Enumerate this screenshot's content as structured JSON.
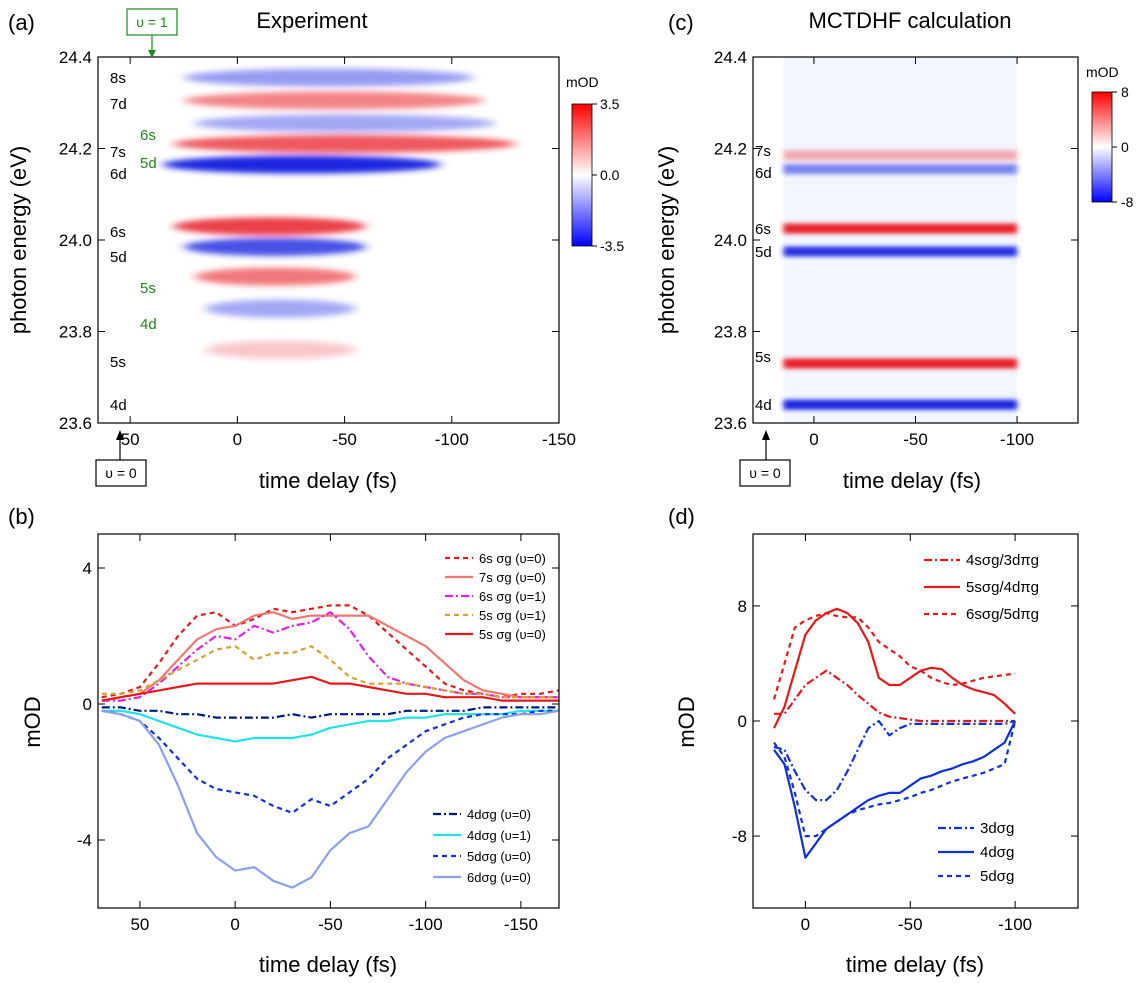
{
  "figure": {
    "panels": {
      "a": {
        "letter": "(a)",
        "title": "Experiment",
        "xlabel": "time delay (fs)",
        "ylabel": "photon energy (eV)"
      },
      "b": {
        "letter": "(b)",
        "xlabel": "time delay (fs)",
        "ylabel": "mOD"
      },
      "c": {
        "letter": "(c)",
        "title": "MCTDHF calculation",
        "xlabel": "time delay (fs)",
        "ylabel": "photon energy (eV)"
      },
      "d": {
        "letter": "(d)",
        "xlabel": "time delay (fs)",
        "ylabel": "mOD"
      }
    },
    "markers": {
      "a_v1": "υ = 1",
      "a_v0": "υ = 0",
      "c_v0": "υ = 0"
    },
    "colorbars": {
      "a": {
        "unit": "mOD",
        "ticks": [
          "3.5",
          "0.0",
          "-3.5"
        ]
      },
      "c": {
        "unit": "mOD",
        "ticks": [
          "8",
          "0",
          "-8"
        ]
      }
    },
    "state_labels": {
      "a_black": [
        "8s",
        "7d",
        "7s",
        "6d",
        "6s",
        "5d",
        "5s",
        "4d"
      ],
      "a_green": [
        "6s",
        "5d",
        "5s",
        "4d"
      ],
      "c_black": [
        "7s",
        "6d",
        "6s",
        "5d",
        "5s",
        "4d"
      ]
    },
    "colors": {
      "red": "#e31a1c",
      "blue": "#1030d8",
      "salmon": "#f07870",
      "magenta": "#e020e0",
      "orange": "#d8a030",
      "navy": "#001a80",
      "cyan": "#20e0e8",
      "lightblue": "#8ca0e8",
      "green": "#1a8a1a"
    }
  },
  "chart_data": [
    {
      "panel": "a",
      "type": "heatmap",
      "title": "Experiment",
      "xlabel": "time delay (fs)",
      "ylabel": "photon energy (eV)",
      "xlim": [
        65,
        -150
      ],
      "ylim": [
        23.6,
        24.4
      ],
      "x_ticks": [
        50,
        0,
        -50,
        -100,
        -150
      ],
      "y_ticks": [
        23.6,
        23.8,
        24.0,
        24.2,
        24.4
      ],
      "colorbar": {
        "label": "mOD",
        "range": [
          -3.5,
          3.5
        ],
        "ticks": [
          3.5,
          0.0,
          -3.5
        ]
      },
      "features": [
        {
          "energy": 24.355,
          "sign": -1,
          "amp": 0.45,
          "t_start": 25,
          "t_end": -110
        },
        {
          "energy": 24.305,
          "sign": 1,
          "amp": 0.55,
          "t_start": 25,
          "t_end": -115
        },
        {
          "energy": 24.255,
          "sign": -1,
          "amp": 0.4,
          "t_start": 20,
          "t_end": -120
        },
        {
          "energy": 24.21,
          "sign": 1,
          "amp": 0.75,
          "t_start": 30,
          "t_end": -130
        },
        {
          "energy": 24.165,
          "sign": -1,
          "amp": 1.0,
          "t_start": 35,
          "t_end": -95
        },
        {
          "energy": 24.03,
          "sign": 1,
          "amp": 0.85,
          "t_start": 30,
          "t_end": -60
        },
        {
          "energy": 23.985,
          "sign": -1,
          "amp": 0.8,
          "t_start": 25,
          "t_end": -60
        },
        {
          "energy": 23.92,
          "sign": 1,
          "amp": 0.6,
          "t_start": 20,
          "t_end": -55
        },
        {
          "energy": 23.85,
          "sign": -1,
          "amp": 0.4,
          "t_start": 15,
          "t_end": -55
        },
        {
          "energy": 23.76,
          "sign": 1,
          "amp": 0.25,
          "t_start": 15,
          "t_end": -55
        }
      ]
    },
    {
      "panel": "b",
      "type": "line",
      "xlabel": "time delay (fs)",
      "ylabel": "mOD",
      "xlim": [
        72,
        -170
      ],
      "ylim": [
        -6,
        5
      ],
      "x_ticks": [
        50,
        0,
        -50,
        -100,
        -150
      ],
      "y_ticks": [
        -4,
        0,
        4
      ],
      "x": [
        70,
        60,
        50,
        40,
        30,
        20,
        10,
        0,
        -10,
        -20,
        -30,
        -40,
        -50,
        -60,
        -70,
        -80,
        -90,
        -100,
        -110,
        -120,
        -130,
        -140,
        -150,
        -160,
        -170
      ],
      "series": [
        {
          "name": "6s σg (υ=0)",
          "color": "#e31a1c",
          "dash": "5,4",
          "values": [
            0.2,
            0.3,
            0.5,
            1.2,
            2.0,
            2.6,
            2.7,
            2.3,
            2.5,
            2.8,
            2.7,
            2.8,
            2.9,
            2.9,
            2.6,
            2.1,
            1.6,
            1.1,
            0.6,
            0.4,
            0.3,
            0.2,
            0.3,
            0.3,
            0.4
          ]
        },
        {
          "name": "7s σg (υ=0)",
          "color": "#f07870",
          "dash": "",
          "values": [
            0.1,
            0.2,
            0.3,
            0.7,
            1.3,
            1.9,
            2.2,
            2.3,
            2.6,
            2.7,
            2.5,
            2.6,
            2.6,
            2.6,
            2.6,
            2.3,
            2.0,
            1.7,
            1.2,
            0.7,
            0.4,
            0.3,
            0.2,
            0.2,
            0.2
          ]
        },
        {
          "name": "6s σg (υ=1)",
          "color": "#e020e0",
          "dash": "8,3,2,3",
          "values": [
            0.1,
            0.1,
            0.2,
            0.6,
            1.1,
            1.6,
            2.0,
            1.9,
            2.3,
            2.1,
            2.3,
            2.4,
            2.7,
            2.2,
            1.4,
            0.8,
            0.6,
            0.5,
            0.4,
            0.3,
            0.3,
            0.2,
            0.2,
            0.2,
            0.2
          ]
        },
        {
          "name": "5s σg (υ=1)",
          "color": "#d8a030",
          "dash": "5,4",
          "values": [
            0.3,
            0.3,
            0.4,
            0.7,
            1.0,
            1.3,
            1.6,
            1.7,
            1.3,
            1.5,
            1.5,
            1.7,
            1.3,
            0.8,
            0.6,
            0.6,
            0.6,
            0.5,
            0.4,
            0.3,
            0.3,
            0.2,
            0.2,
            0.2,
            0.2
          ]
        },
        {
          "name": "5s σg (υ=0)",
          "color": "#e31a1c",
          "dash": "",
          "values": [
            0.1,
            0.2,
            0.3,
            0.4,
            0.5,
            0.6,
            0.6,
            0.6,
            0.6,
            0.6,
            0.7,
            0.8,
            0.6,
            0.6,
            0.5,
            0.4,
            0.3,
            0.3,
            0.2,
            0.2,
            0.2,
            0.1,
            0.1,
            0.1,
            0.1
          ]
        },
        {
          "name": "4dσg (υ=0)",
          "color": "#001a80",
          "dash": "8,3,2,3",
          "values": [
            -0.1,
            -0.1,
            -0.2,
            -0.2,
            -0.3,
            -0.3,
            -0.4,
            -0.4,
            -0.4,
            -0.4,
            -0.3,
            -0.4,
            -0.3,
            -0.3,
            -0.3,
            -0.3,
            -0.2,
            -0.2,
            -0.2,
            -0.2,
            -0.1,
            -0.1,
            -0.1,
            -0.1,
            -0.1
          ]
        },
        {
          "name": "4dσg (υ=1)",
          "color": "#20e0e8",
          "dash": "",
          "values": [
            -0.2,
            -0.2,
            -0.3,
            -0.5,
            -0.7,
            -0.9,
            -1.0,
            -1.1,
            -1.0,
            -1.0,
            -1.0,
            -0.9,
            -0.7,
            -0.6,
            -0.5,
            -0.5,
            -0.4,
            -0.4,
            -0.3,
            -0.3,
            -0.3,
            -0.3,
            -0.2,
            -0.2,
            -0.2
          ]
        },
        {
          "name": "5dσg (υ=0)",
          "color": "#1030d8",
          "dash": "5,4",
          "values": [
            -0.2,
            -0.3,
            -0.5,
            -1.0,
            -1.6,
            -2.2,
            -2.5,
            -2.6,
            -2.7,
            -3.0,
            -3.2,
            -2.8,
            -3.0,
            -2.6,
            -2.2,
            -1.6,
            -1.2,
            -0.8,
            -0.6,
            -0.4,
            -0.3,
            -0.3,
            -0.3,
            -0.2,
            -0.2
          ]
        },
        {
          "name": "6dσg (υ=0)",
          "color": "#8ca0e8",
          "dash": "",
          "values": [
            -0.2,
            -0.3,
            -0.5,
            -1.2,
            -2.4,
            -3.8,
            -4.5,
            -4.9,
            -4.8,
            -5.2,
            -5.4,
            -5.1,
            -4.3,
            -3.8,
            -3.6,
            -2.8,
            -2.0,
            -1.4,
            -1.0,
            -0.8,
            -0.6,
            -0.4,
            -0.3,
            -0.3,
            -0.2
          ]
        }
      ]
    },
    {
      "panel": "c",
      "type": "heatmap",
      "title": "MCTDHF calculation",
      "xlabel": "time delay (fs)",
      "ylabel": "photon energy (eV)",
      "xlim": [
        30,
        -130
      ],
      "ylim": [
        23.6,
        24.4
      ],
      "data_xrange": [
        15,
        -100
      ],
      "x_ticks": [
        0,
        -50,
        -100
      ],
      "y_ticks": [
        23.6,
        23.8,
        24.0,
        24.2,
        24.4
      ],
      "colorbar": {
        "label": "mOD",
        "range": [
          -8,
          8
        ],
        "ticks": [
          8,
          0,
          -8
        ]
      },
      "features": [
        {
          "energy": 24.185,
          "sign": 1,
          "amp": 0.35
        },
        {
          "energy": 24.155,
          "sign": -1,
          "amp": 0.55
        },
        {
          "energy": 24.025,
          "sign": 1,
          "amp": 1.0
        },
        {
          "energy": 23.975,
          "sign": -1,
          "amp": 0.95
        },
        {
          "energy": 23.73,
          "sign": 1,
          "amp": 1.0
        },
        {
          "energy": 23.64,
          "sign": -1,
          "amp": 1.0
        }
      ]
    },
    {
      "panel": "d",
      "type": "line",
      "xlabel": "time delay (fs)",
      "ylabel": "mOD",
      "xlim": [
        25,
        -130
      ],
      "ylim": [
        -13,
        13
      ],
      "x_ticks": [
        0,
        -50,
        -100
      ],
      "y_ticks": [
        -8,
        0,
        8
      ],
      "x": [
        15,
        10,
        5,
        0,
        -5,
        -10,
        -15,
        -20,
        -25,
        -30,
        -35,
        -40,
        -45,
        -50,
        -55,
        -60,
        -65,
        -70,
        -75,
        -80,
        -85,
        -90,
        -95,
        -100
      ],
      "series": [
        {
          "name": "4sσg/3dπg",
          "color": "#e31a1c",
          "dash": "8,3,2,3",
          "values": [
            0.5,
            0.5,
            1.5,
            2.5,
            3.0,
            3.5,
            3.0,
            2.5,
            1.8,
            1.2,
            0.6,
            0.3,
            0.2,
            0.1,
            0.0,
            0.0,
            0.0,
            0.0,
            0.0,
            0.0,
            0.0,
            0.0,
            0.0,
            0.0
          ]
        },
        {
          "name": "5sσg/4dπg",
          "color": "#e31a1c",
          "dash": "",
          "values": [
            -0.5,
            1.0,
            3.5,
            6.0,
            7.0,
            7.5,
            7.8,
            7.5,
            6.8,
            5.5,
            3.0,
            2.5,
            2.5,
            3.0,
            3.5,
            3.7,
            3.6,
            3.0,
            2.5,
            2.2,
            2.0,
            1.8,
            1.2,
            0.5
          ]
        },
        {
          "name": "6sσg/5dπg",
          "color": "#e31a1c",
          "dash": "5,4",
          "values": [
            1.5,
            4.0,
            6.5,
            7.0,
            7.3,
            7.5,
            7.3,
            7.2,
            7.2,
            6.5,
            5.5,
            5.0,
            4.5,
            3.8,
            3.5,
            3.0,
            2.7,
            2.5,
            2.6,
            2.8,
            3.0,
            3.1,
            3.2,
            3.3
          ]
        },
        {
          "name": "3dσg",
          "color": "#1030d8",
          "dash": "8,3,2,3",
          "values": [
            -1.8,
            -2.0,
            -3.5,
            -4.8,
            -5.5,
            -5.5,
            -4.8,
            -3.5,
            -2.0,
            -0.5,
            0.0,
            -1.0,
            -0.5,
            -0.2,
            -0.2,
            -0.2,
            -0.2,
            -0.2,
            -0.2,
            -0.2,
            -0.2,
            -0.2,
            -0.2,
            0.0
          ]
        },
        {
          "name": "4dσg",
          "color": "#1030d8",
          "dash": "",
          "values": [
            -2.0,
            -3.0,
            -6.0,
            -9.5,
            -8.5,
            -7.5,
            -7.0,
            -6.5,
            -6.0,
            -5.5,
            -5.2,
            -5.0,
            -5.0,
            -4.5,
            -4.0,
            -3.8,
            -3.5,
            -3.3,
            -3.0,
            -2.8,
            -2.5,
            -2.0,
            -1.5,
            0.0
          ]
        },
        {
          "name": "5dσg",
          "color": "#1030d8",
          "dash": "5,4",
          "values": [
            -1.5,
            -2.5,
            -5.0,
            -8.0,
            -8.0,
            -7.5,
            -7.0,
            -6.5,
            -6.2,
            -6.0,
            -5.8,
            -5.7,
            -5.5,
            -5.3,
            -5.0,
            -4.8,
            -4.5,
            -4.2,
            -4.0,
            -3.8,
            -3.6,
            -3.3,
            -3.0,
            0.0
          ]
        }
      ]
    }
  ]
}
